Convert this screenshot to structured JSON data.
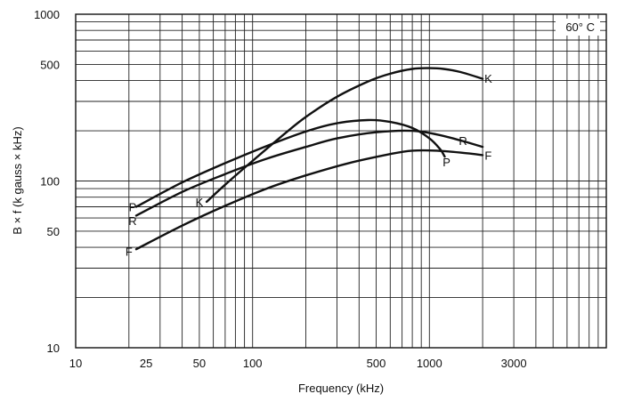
{
  "chart_data": {
    "type": "line",
    "title": "",
    "annotation": "60° C",
    "xlabel": "Frequency (kHz)",
    "ylabel": "B × f (k gauss × kHz)",
    "xscale": "log",
    "yscale": "log",
    "xlim": [
      10,
      10000
    ],
    "ylim": [
      10,
      1000
    ],
    "grid": true,
    "x_ticks": [
      {
        "value": 10,
        "label": "10"
      },
      {
        "value": 25,
        "label": "25"
      },
      {
        "value": 50,
        "label": "50"
      },
      {
        "value": 100,
        "label": "100"
      },
      {
        "value": 500,
        "label": "500"
      },
      {
        "value": 1000,
        "label": "1000"
      },
      {
        "value": 3000,
        "label": "3000"
      }
    ],
    "y_ticks": [
      {
        "value": 10,
        "label": "10"
      },
      {
        "value": 50,
        "label": "50"
      },
      {
        "value": 100,
        "label": "100"
      },
      {
        "value": 500,
        "label": "500"
      },
      {
        "value": 1000,
        "label": "1000"
      }
    ],
    "series": [
      {
        "name": "P",
        "x": [
          22,
          40,
          70,
          120,
          200,
          300,
          450,
          600,
          800,
          1000,
          1150,
          1220
        ],
        "y": [
          70,
          98,
          128,
          162,
          198,
          222,
          232,
          226,
          208,
          180,
          155,
          140
        ]
      },
      {
        "name": "R",
        "x": [
          22,
          40,
          70,
          120,
          200,
          300,
          500,
          800,
          1100,
          1500,
          2000
        ],
        "y": [
          62,
          86,
          110,
          136,
          160,
          180,
          196,
          200,
          190,
          175,
          160
        ]
      },
      {
        "name": "F",
        "x": [
          22,
          40,
          70,
          120,
          200,
          350,
          600,
          800,
          1100,
          1500,
          2000
        ],
        "y": [
          39,
          54,
          71,
          90,
          108,
          128,
          145,
          152,
          152,
          148,
          143
        ]
      },
      {
        "name": "K",
        "x": [
          55,
          70,
          100,
          150,
          200,
          300,
          450,
          600,
          800,
          1000,
          1200,
          1500,
          2000
        ],
        "y": [
          75,
          95,
          132,
          190,
          242,
          320,
          395,
          440,
          470,
          475,
          470,
          450,
          410
        ]
      }
    ],
    "curve_labels": [
      {
        "text": "P",
        "x": 21,
        "y": 70
      },
      {
        "text": "R",
        "x": 21,
        "y": 58
      },
      {
        "text": "F",
        "x": 20,
        "y": 38
      },
      {
        "text": "K",
        "x": 50,
        "y": 75
      },
      {
        "text": "K",
        "x": 2150,
        "y": 412
      },
      {
        "text": "R",
        "x": 1550,
        "y": 175
      },
      {
        "text": "P",
        "x": 1250,
        "y": 130
      },
      {
        "text": "F",
        "x": 2150,
        "y": 143
      }
    ]
  }
}
